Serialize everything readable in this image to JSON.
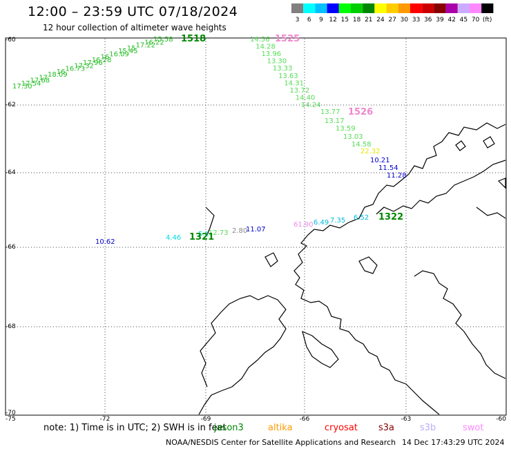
{
  "header": {
    "title": "12:00 – 23:59 UTC 07/18/2024",
    "subtitle": "12 hour collection of altimeter wave heights"
  },
  "legend": {
    "unit": "(ft)",
    "bins": [
      {
        "label": "3",
        "color": "#808080"
      },
      {
        "label": "6",
        "color": "#00ffff"
      },
      {
        "label": "9",
        "color": "#00c0ff"
      },
      {
        "label": "12",
        "color": "#0000ff"
      },
      {
        "label": "15",
        "color": "#00ff00"
      },
      {
        "label": "18",
        "color": "#00d000"
      },
      {
        "label": "21",
        "color": "#008800"
      },
      {
        "label": "24",
        "color": "#ffff00"
      },
      {
        "label": "27",
        "color": "#ffcc00"
      },
      {
        "label": "30",
        "color": "#ff9900"
      },
      {
        "label": "33",
        "color": "#ff0000"
      },
      {
        "label": "36",
        "color": "#cc0000"
      },
      {
        "label": "39",
        "color": "#880000"
      },
      {
        "label": "42",
        "color": "#aa00aa"
      },
      {
        "label": "45",
        "color": "#ccaaff"
      },
      {
        "label": "70",
        "color": "#ff88ff"
      },
      {
        "label": "",
        "color": "#000000"
      }
    ]
  },
  "axes": {
    "lat_ticks": [
      "-60",
      "-62",
      "-64",
      "-66",
      "-68",
      "-70"
    ],
    "lon_ticks": [
      "-75",
      "-72",
      "-69",
      "-66",
      "-63",
      "-60"
    ]
  },
  "passes": [
    {
      "id": "1518",
      "color": "#008800",
      "label_color": "#008800",
      "points": [
        {
          "v": "15.58",
          "c": "#22bb22"
        },
        {
          "v": "16.22",
          "c": "#22bb22"
        },
        {
          "v": "17.22",
          "c": "#22bb22"
        },
        {
          "v": "15",
          "c": "#22bb22"
        },
        {
          "v": "15.45",
          "c": "#22bb22"
        },
        {
          "v": "16.09",
          "c": "#22bb22"
        },
        {
          "v": "16",
          "c": "#22bb22"
        },
        {
          "v": "16.28",
          "c": "#22bb22"
        },
        {
          "v": "17.96",
          "c": "#22bb22"
        },
        {
          "v": "17.32",
          "c": "#22bb22"
        },
        {
          "v": "16.73",
          "c": "#22bb22"
        },
        {
          "v": "16",
          "c": "#22bb22"
        },
        {
          "v": "18.09",
          "c": "#22bb22"
        },
        {
          "v": "17",
          "c": "#22bb22"
        },
        {
          "v": "17.68",
          "c": "#22bb22"
        },
        {
          "v": "17.54",
          "c": "#22bb22"
        },
        {
          "v": "17.30",
          "c": "#22bb22"
        }
      ]
    },
    {
      "id": "1525",
      "color": "#ff88cc",
      "label_color": "#ee88cc",
      "points": [
        {
          "v": "14.56",
          "c": "#55dd55"
        },
        {
          "v": "14.28",
          "c": "#55dd55"
        },
        {
          "v": "13.96",
          "c": "#55dd55"
        },
        {
          "v": "13.30",
          "c": "#55dd55"
        },
        {
          "v": "13.33",
          "c": "#55dd55"
        },
        {
          "v": "13.63",
          "c": "#55dd55"
        },
        {
          "v": "14.31",
          "c": "#55dd55"
        },
        {
          "v": "13.72",
          "c": "#55dd55"
        },
        {
          "v": "14.40",
          "c": "#55dd55"
        },
        {
          "v": "14.24",
          "c": "#55dd55"
        }
      ]
    },
    {
      "id": "1526",
      "color": "#ff88cc",
      "label_color": "#ee88cc",
      "points": [
        {
          "v": "13.77",
          "c": "#55dd55"
        },
        {
          "v": "13.17",
          "c": "#55dd55"
        },
        {
          "v": "13.59",
          "c": "#55dd55"
        },
        {
          "v": "13.03",
          "c": "#55dd55"
        },
        {
          "v": "14.58",
          "c": "#55dd55"
        },
        {
          "v": "22.32",
          "c": "#e6e600"
        },
        {
          "v": "10.21",
          "c": "#0000cc"
        },
        {
          "v": "11.54",
          "c": "#0000cc"
        },
        {
          "v": "11.28",
          "c": "#0000cc"
        }
      ]
    },
    {
      "id": "1322",
      "color": "#008800",
      "label_color": "#008800",
      "points": [
        {
          "v": "6.52",
          "c": "#00bbdd"
        },
        {
          "v": "7.35",
          "c": "#00bbdd"
        },
        {
          "v": "6.49",
          "c": "#00bbdd"
        },
        {
          "v": "61.90",
          "c": "#ee88ee"
        }
      ]
    },
    {
      "id": "1321",
      "color": "#008800",
      "label_color": "#008800",
      "points": [
        {
          "v": "10.62",
          "c": "#0000cc"
        },
        {
          "v": "4.46",
          "c": "#00dddd"
        },
        {
          "v": "5.1",
          "c": "#00dddd"
        },
        {
          "v": "12.73",
          "c": "#55dd55"
        },
        {
          "v": "2.80",
          "c": "#888888"
        },
        {
          "v": "11.07",
          "c": "#0000cc"
        }
      ]
    }
  ],
  "footer": {
    "note": "note:  1) Time is in UTC; 2) SWH is in feet",
    "satellites": [
      {
        "name": "jason3",
        "color": "#008800"
      },
      {
        "name": "altika",
        "color": "#ff9900"
      },
      {
        "name": "cryosat",
        "color": "#ff0000"
      },
      {
        "name": "s3a",
        "color": "#880000"
      },
      {
        "name": "s3b",
        "color": "#bbaaff"
      },
      {
        "name": "swot",
        "color": "#ff88ff"
      }
    ],
    "credit": "NOAA/NESDIS Center for Satellite Applications and Research",
    "timestamp": "14 Dec 17:43:29 UTC 2024"
  }
}
